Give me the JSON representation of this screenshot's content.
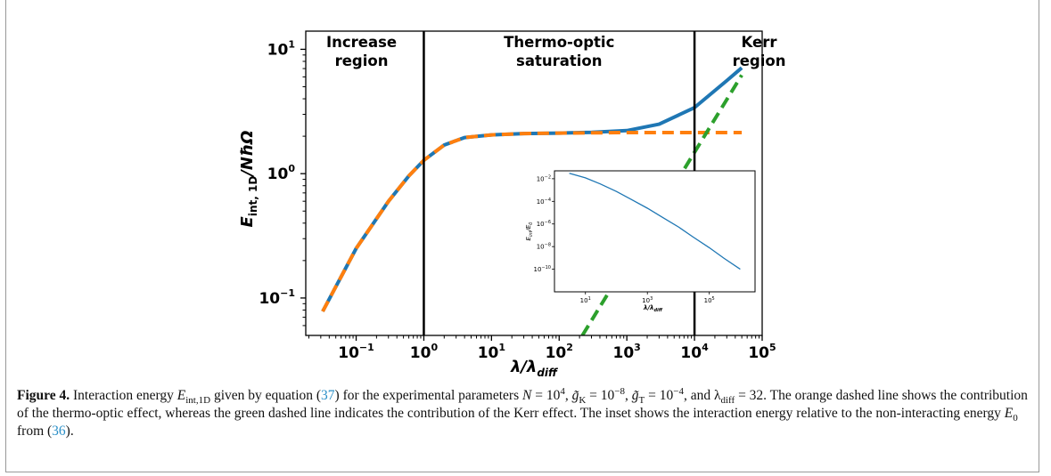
{
  "chart_data": [
    {
      "type": "line",
      "xlabel": "λ/λ",
      "xlabel_sub": "diff",
      "ylabel": "E",
      "ylabel_sub": "int, 1D",
      "ylabel_tail": "/NħΩ",
      "xscale": "log",
      "yscale": "log",
      "xlim": [
        0.018,
        100000
      ],
      "ylim": [
        0.05,
        14
      ],
      "x_ticks": [
        {
          "base": "10",
          "exp": "−1",
          "value": 0.1
        },
        {
          "base": "10",
          "exp": "0",
          "value": 1
        },
        {
          "base": "10",
          "exp": "1",
          "value": 10
        },
        {
          "base": "10",
          "exp": "2",
          "value": 100
        },
        {
          "base": "10",
          "exp": "3",
          "value": 1000
        },
        {
          "base": "10",
          "exp": "4",
          "value": 10000
        },
        {
          "base": "10",
          "exp": "5",
          "value": 100000
        }
      ],
      "y_ticks": [
        {
          "base": "10",
          "exp": "−1",
          "value": 0.1
        },
        {
          "base": "10",
          "exp": "0",
          "value": 1
        },
        {
          "base": "10",
          "exp": "1",
          "value": 10
        }
      ],
      "vlines": [
        1,
        10000
      ],
      "region_labels": [
        {
          "lines": [
            "Increase",
            "region"
          ],
          "x": 0.12
        },
        {
          "lines": [
            "Thermo-optic",
            "saturation"
          ],
          "x": 100
        },
        {
          "lines": [
            "Kerr",
            "region"
          ],
          "x": 90000
        }
      ],
      "series": [
        {
          "color": "#1f77b4",
          "style": "solid",
          "x": [
            0.032,
            0.1,
            0.3,
            0.6,
            1,
            2,
            4,
            10,
            30,
            100,
            300,
            1000,
            3000,
            10000,
            30000,
            50000
          ],
          "y": [
            0.078,
            0.25,
            0.6,
            0.96,
            1.28,
            1.7,
            1.95,
            2.05,
            2.1,
            2.12,
            2.15,
            2.22,
            2.5,
            3.4,
            5.6,
            7.1
          ]
        },
        {
          "color": "#ff7f0e",
          "style": "dashed",
          "x": [
            0.032,
            0.1,
            0.3,
            0.6,
            1,
            2,
            4,
            10,
            30,
            100,
            300,
            1000,
            3000,
            10000,
            30000,
            50000
          ],
          "y": [
            0.078,
            0.25,
            0.6,
            0.96,
            1.28,
            1.7,
            1.95,
            2.05,
            2.1,
            2.12,
            2.13,
            2.14,
            2.14,
            2.14,
            2.14,
            2.14
          ]
        },
        {
          "color": "#2ca02c",
          "style": "dashed",
          "x": [
            220,
            50000
          ],
          "y": [
            0.05,
            6.2
          ]
        }
      ]
    },
    {
      "type": "line",
      "xlabel": "λ/λ",
      "xlabel_sub": "diff",
      "ylabel": "E",
      "ylabel_sub": "int",
      "ylabel_tail": "/E",
      "ylabel_sub2": "0",
      "xscale": "log",
      "yscale": "log",
      "xlim": [
        1,
        3000000
      ],
      "ylim": [
        1e-12,
        0.05
      ],
      "x_ticks": [
        {
          "base": "10",
          "exp": "1",
          "value": 10
        },
        {
          "base": "10",
          "exp": "3",
          "value": 1000
        },
        {
          "base": "10",
          "exp": "5",
          "value": 100000
        }
      ],
      "y_ticks": [
        {
          "base": "10",
          "exp": "−2",
          "value": 0.01
        },
        {
          "base": "10",
          "exp": "−4",
          "value": 0.0001
        },
        {
          "base": "10",
          "exp": "−6",
          "value": 1e-06
        },
        {
          "base": "10",
          "exp": "−8",
          "value": 1e-08
        },
        {
          "base": "10",
          "exp": "−10",
          "value": 1e-10
        }
      ],
      "series": [
        {
          "color": "#1f77b4",
          "style": "solid",
          "x": [
            3,
            10,
            30,
            100,
            300,
            1000,
            3000,
            10000,
            30000,
            100000,
            300000,
            1000000
          ],
          "y": [
            0.03,
            0.012,
            0.0035,
            0.00075,
            0.00015,
            2.5e-05,
            4e-06,
            5.5e-07,
            7e-08,
            8e-09,
            9e-10,
            1e-10
          ]
        }
      ]
    }
  ],
  "caption": {
    "label": "Figure 4.",
    "segments": [
      {
        "t": "  Interaction energy "
      },
      {
        "t": "E",
        "style": "i"
      },
      {
        "t": "int,1D",
        "style": "sub"
      },
      {
        "t": " given by equation ("
      },
      {
        "t": "37",
        "style": "ref"
      },
      {
        "t": ") for the experimental parameters "
      },
      {
        "t": "N",
        "style": "i"
      },
      {
        "t": " = 10"
      },
      {
        "t": "4",
        "style": "sup"
      },
      {
        "t": ", "
      },
      {
        "t": "g̃",
        "style": "i"
      },
      {
        "t": "K",
        "style": "sub"
      },
      {
        "t": " = 10"
      },
      {
        "t": "−8",
        "style": "sup"
      },
      {
        "t": ", "
      },
      {
        "t": "g̃",
        "style": "i"
      },
      {
        "t": "T",
        "style": "sub"
      },
      {
        "t": " = 10"
      },
      {
        "t": "−4",
        "style": "sup"
      },
      {
        "t": ", and λ"
      },
      {
        "t": "diff",
        "style": "sub"
      },
      {
        "t": " = 32. The orange dashed line shows the contribution of the thermo-optic effect, whereas the green dashed line indicates the contribution of the Kerr effect. The inset shows the interaction energy relative to the non-interacting energy "
      },
      {
        "t": "E",
        "style": "i"
      },
      {
        "t": "0",
        "style": "sub"
      },
      {
        "t": " from ("
      },
      {
        "t": "36",
        "style": "ref"
      },
      {
        "t": ")."
      }
    ]
  }
}
